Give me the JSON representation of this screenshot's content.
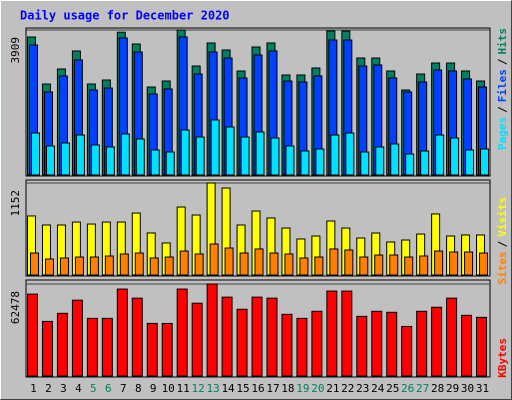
{
  "chart_data": [
    {
      "type": "bar",
      "title": "Daily usage for December 2020",
      "legend_separator": "/",
      "ylim": [
        0,
        3909
      ],
      "yticks": [
        3909
      ],
      "series": [
        {
          "name": "Hits",
          "color": "#008060",
          "values": [
            3720,
            2453,
            2858,
            3343,
            2453,
            2561,
            3850,
            3532,
            2372,
            2534,
            3909,
            2939,
            3559,
            3370,
            2804,
            3451,
            3559,
            2696,
            2696,
            2885,
            3882,
            3880,
            3154,
            3154,
            2804,
            2292,
            2723,
            3019,
            3019,
            2804,
            2534
          ]
        },
        {
          "name": "Files",
          "color": "#0040ff",
          "values": [
            3505,
            2238,
            2669,
            3101,
            2292,
            2346,
            3694,
            3316,
            2184,
            2319,
            3721,
            2723,
            3316,
            3154,
            2615,
            3235,
            3343,
            2534,
            2507,
            2669,
            3640,
            3640,
            2939,
            2966,
            2615,
            2238,
            2507,
            2831,
            2804,
            2588,
            2372
          ]
        },
        {
          "name": "Pages",
          "color": "#00e0ff",
          "values": [
            1132,
            782,
            863,
            1078,
            809,
            755,
            1105,
            971,
            674,
            620,
            1213,
            1024,
            1483,
            1294,
            1024,
            1159,
            997,
            782,
            647,
            701,
            1078,
            1132,
            620,
            755,
            836,
            566,
            647,
            1078,
            997,
            674,
            701
          ]
        }
      ]
    },
    {
      "type": "bar",
      "legend_separator": "/",
      "ylim": [
        0,
        1152
      ],
      "yticks": [
        1152
      ],
      "series": [
        {
          "name": "Visits",
          "color": "#ffff00",
          "values": [
            739,
            626,
            626,
            663,
            638,
            663,
            663,
            776,
            526,
            401,
            851,
            751,
            1152,
            1089,
            626,
            801,
            714,
            588,
            451,
            488,
            676,
            588,
            463,
            526,
            413,
            438,
            513,
            764,
            488,
            501,
            501
          ]
        },
        {
          "name": "Sites",
          "color": "#ff8000",
          "values": [
            275,
            200,
            213,
            225,
            225,
            238,
            263,
            275,
            213,
            225,
            300,
            263,
            388,
            338,
            275,
            326,
            275,
            263,
            213,
            225,
            326,
            313,
            225,
            250,
            250,
            225,
            238,
            300,
            288,
            288,
            275
          ]
        }
      ]
    },
    {
      "type": "bar",
      "ylim": [
        0,
        62478
      ],
      "yticks": [
        62478
      ],
      "categories": [
        "1",
        "2",
        "3",
        "4",
        "5",
        "6",
        "7",
        "8",
        "9",
        "10",
        "11",
        "12",
        "13",
        "14",
        "15",
        "16",
        "17",
        "18",
        "19",
        "20",
        "21",
        "22",
        "23",
        "24",
        "25",
        "26",
        "27",
        "28",
        "29",
        "30",
        "31"
      ],
      "label_colors": [
        "#000000",
        "#000000",
        "#000000",
        "#000000",
        "#008060",
        "#008060",
        "#000000",
        "#000000",
        "#000000",
        "#000000",
        "#000000",
        "#008060",
        "#008060",
        "#000000",
        "#000000",
        "#000000",
        "#000000",
        "#000000",
        "#008060",
        "#008060",
        "#000000",
        "#000000",
        "#000000",
        "#000000",
        "#000000",
        "#008060",
        "#008060",
        "#000000",
        "#000000",
        "#000000",
        "#000000"
      ],
      "series": [
        {
          "name": "KBytes",
          "color": "#ff0000",
          "values": [
            55612,
            37077,
            42570,
            51496,
            39137,
            39137,
            59049,
            52869,
            35704,
            35704,
            59049,
            49436,
            62478,
            53556,
            45316,
            53556,
            52869,
            41883,
            39137,
            43943,
            57676,
            57676,
            40510,
            43943,
            43257,
            33644,
            43943,
            46690,
            52869,
            41196,
            39823
          ]
        }
      ]
    }
  ]
}
